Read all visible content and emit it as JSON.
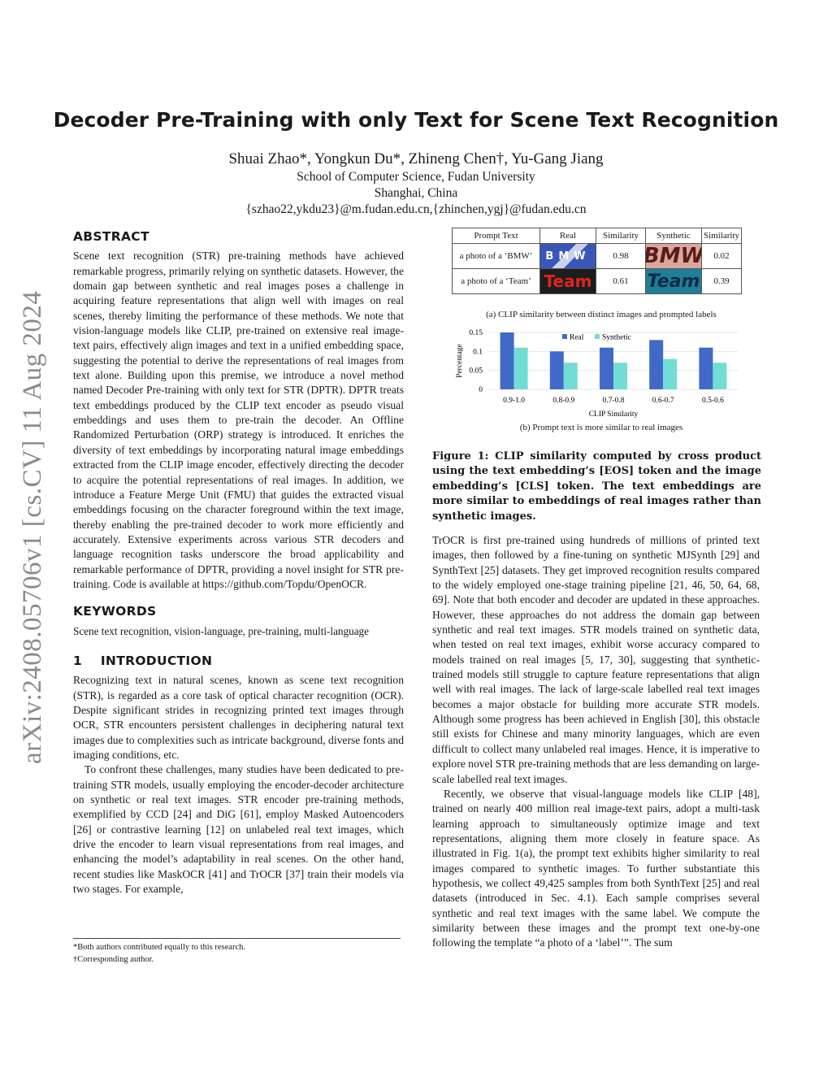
{
  "sidebar": {
    "arxiv_id": "arXiv:2408.05706v1  [cs.CV]  11 Aug 2024"
  },
  "header": {
    "title": "Decoder Pre-Training with only Text for Scene Text Recognition",
    "authors": "Shuai Zhao*, Yongkun Du*, Zhineng Chen†, Yu-Gang Jiang",
    "affiliation": "School of Computer Science, Fudan University",
    "location": "Shanghai, China",
    "emails": "{szhao22,ykdu23}@m.fudan.edu.cn,{zhinchen,ygj}@fudan.edu.cn"
  },
  "abstract": {
    "heading": "ABSTRACT",
    "text": "Scene text recognition (STR) pre-training methods have achieved remarkable progress, primarily relying on synthetic datasets. However, the domain gap between synthetic and real images poses a challenge in acquiring feature representations that align well with images on real scenes, thereby limiting the performance of these methods. We note that vision-language models like CLIP, pre-trained on extensive real image-text pairs, effectively align images and text in a unified embedding space, suggesting the potential to derive the representations of real images from text alone. Building upon this premise, we introduce a novel method named Decoder Pre-training with only text for STR (DPTR). DPTR treats text embeddings produced by the CLIP text encoder as pseudo visual embeddings and uses them to pre-train the decoder. An Offline Randomized Perturbation (ORP) strategy is introduced. It enriches the diversity of text embeddings by incorporating natural image embeddings extracted from the CLIP image encoder, effectively directing the decoder to acquire the potential representations of real images. In addition, we introduce a Feature Merge Unit (FMU) that guides the extracted visual embeddings focusing on the character foreground within the text image, thereby enabling the pre-trained decoder to work more efficiently and accurately. Extensive experiments across various STR decoders and language recognition tasks underscore the broad applicability and remarkable performance of DPTR, providing a novel insight for STR pre-training. Code is available at https://github.com/Topdu/OpenOCR."
  },
  "keywords": {
    "heading": "KEYWORDS",
    "text": "Scene text recognition, vision-language, pre-training, multi-language"
  },
  "introduction": {
    "heading": "1    INTRODUCTION",
    "paragraphs": [
      "Recognizing text in natural scenes, known as scene text recognition (STR), is regarded as a core task of optical character recognition (OCR). Despite significant strides in recognizing printed text images through OCR, STR encounters persistent challenges in deciphering natural text images due to complexities such as intricate background, diverse fonts and imaging conditions, etc.",
      "To confront these challenges, many studies have been dedicated to pre-training STR models, usually employing the encoder-decoder architecture on synthetic or real text images. STR encoder pre-training methods, exemplified by CCD [24] and DiG [61], employ Masked Autoencoders [26] or contrastive learning [12] on unlabeled real text images, which drive the encoder to learn visual representations from real images, and enhancing the model’s adaptability in real scenes. On the other hand, recent studies like MaskOCR [41] and TrOCR [37] train their models via two stages. For example,"
    ],
    "right_paragraphs": [
      "TrOCR is first pre-trained using hundreds of millions of printed text images, then followed by a fine-tuning on synthetic MJSynth [29] and SynthText [25] datasets. They get improved recognition results compared to the widely employed one-stage training pipeline [21, 46, 50, 64, 68, 69]. Note that both encoder and decoder are updated in these approaches. However, these approaches do not address the domain gap between synthetic and real text images. STR models trained on synthetic data, when tested on real text images, exhibit worse accuracy compared to models trained on real images [5, 17, 30], suggesting that synthetic-trained models still struggle to capture feature representations that align well with real images. The lack of large-scale labelled real text images becomes a major obstacle for building more accurate STR models. Although some progress has been achieved in English [30], this obstacle still exists for Chinese and many minority languages, which are even difficult to collect many unlabeled real images. Hence, it is imperative to explore novel STR pre-training methods that are less demanding on large-scale labelled real text images.",
      "Recently, we observe that visual-language models like CLIP [48], trained on nearly 400 million real image-text pairs, adopt a multi-task learning approach to simultaneously optimize image and text representations, aligning them more closely in feature space. As illustrated in Fig. 1(a), the prompt text exhibits higher similarity to real images compared to synthetic images. To further substantiate this hypothesis, we collect 49,425 samples from both SynthText [25] and real datasets (introduced in Sec. 4.1). Each sample comprises several synthetic and real text images with the same label. We compute the similarity between these images and the prompt text one-by-one following the template “a photo of a ‘label’”. The sum"
    ]
  },
  "footnotes": [
    "*Both authors contributed equally to this research.",
    "†Corresponding author."
  ],
  "figure": {
    "table": {
      "headers": [
        "Prompt Text",
        "Real",
        "Similarity",
        "Synthetic",
        "Similarity"
      ],
      "rows": [
        {
          "prompt": "a photo of a ‘BMW’",
          "real_img_text": "BMW",
          "real_sim": "0.98",
          "synth_img_text": "BMW",
          "synth_sim": "0.02"
        },
        {
          "prompt": "a photo of a ‘Team’",
          "real_img_text": "Team",
          "real_sim": "0.61",
          "synth_img_text": "Team",
          "synth_sim": "0.39"
        }
      ]
    },
    "caption_a": "(a) CLIP similarity between distinct images and prompted labels",
    "caption_b": "(b) Prompt text is more similar to real images",
    "caption": "Figure 1: CLIP similarity computed by cross product using the text embedding’s [EOS] token and the image embedding’s [CLS] token. The text embeddings are more similar to embeddings of real images rather than synthetic images."
  },
  "chart_data": {
    "type": "bar",
    "categories": [
      "0.9-1.0",
      "0.8-0.9",
      "0.7-0.8",
      "0.6-0.7",
      "0.5-0.6"
    ],
    "series": [
      {
        "name": "Real",
        "values": [
          0.15,
          0.1,
          0.11,
          0.13,
          0.11
        ],
        "color": "#4169c8"
      },
      {
        "name": "Synthetic",
        "values": [
          0.11,
          0.07,
          0.07,
          0.08,
          0.07
        ],
        "color": "#72ddd5"
      }
    ],
    "xlabel": "CLIP Similarity",
    "ylabel": "Percentage",
    "ylim": [
      0,
      0.15
    ],
    "yticks": [
      "0",
      "0.05",
      "0.1",
      "0.15"
    ],
    "grid": true,
    "legend": "top-center"
  }
}
